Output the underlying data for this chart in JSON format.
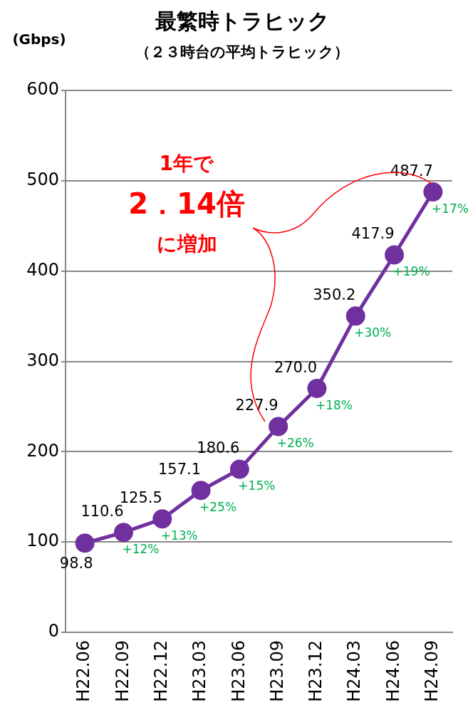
{
  "chart_data": {
    "type": "line",
    "title": "最繁時トラヒック",
    "subtitle": "（２３時台の平均トラヒック）",
    "ylabel": "(Gbps)",
    "categories": [
      "H22.06",
      "H22.09",
      "H22.12",
      "H23.03",
      "H23.06",
      "H23.09",
      "H23.12",
      "H24.03",
      "H24.06",
      "H24.09"
    ],
    "series": [
      {
        "color": "#7030a0",
        "values": [
          98.8,
          110.6,
          125.5,
          157.1,
          180.6,
          227.9,
          270.0,
          350.2,
          417.9,
          487.7
        ],
        "value_labels": [
          "98.8",
          "110.6",
          "125.5",
          "157.1",
          "180.6",
          "227.9",
          "270.0",
          "350.2",
          "417.9",
          "487.7"
        ]
      }
    ],
    "annotations": [
      {
        "text": "+12%",
        "x": "H22.09",
        "y": 110.6
      },
      {
        "text": "+13%",
        "x": "H22.12",
        "y": 125.5
      },
      {
        "text": "+25%",
        "x": "H23.03",
        "y": 157.1
      },
      {
        "text": "+15%",
        "x": "H23.06",
        "y": 180.6
      },
      {
        "text": "+26%",
        "x": "H23.09",
        "y": 227.9
      },
      {
        "text": "+18%",
        "x": "H23.12",
        "y": 270.0
      },
      {
        "text": "+30%",
        "x": "H24.03",
        "y": 350.2
      },
      {
        "text": "+19%",
        "x": "H24.06",
        "y": 417.9
      },
      {
        "text": "+17%",
        "x": "H24.09",
        "y": 487.7
      },
      "1年で",
      "2．14倍",
      "に増加"
    ],
    "ylim": [
      0,
      600
    ],
    "yticks": [
      0,
      100,
      200,
      300,
      400,
      500,
      600
    ],
    "grid": "y",
    "legend": false,
    "marker": "circle",
    "line_style": "solid"
  }
}
